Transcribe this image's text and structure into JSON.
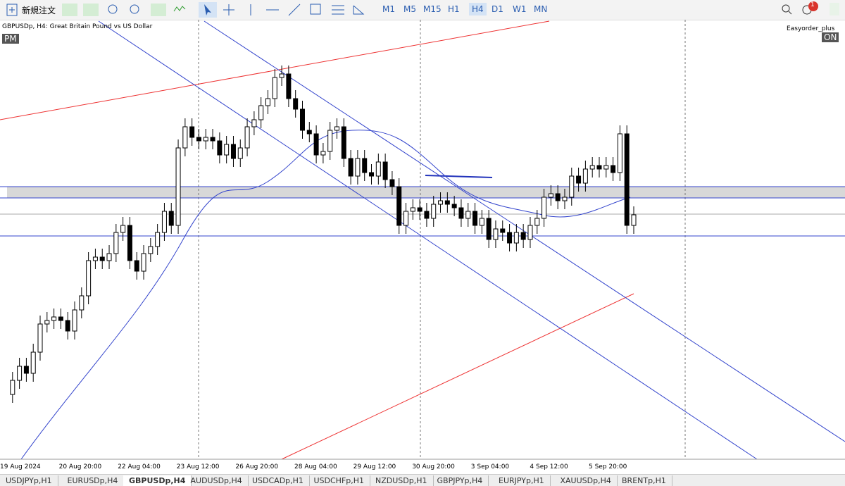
{
  "toolbar": {
    "new_order": "新規注文",
    "notifications": "1",
    "timeframes": [
      "M1",
      "M5",
      "M15",
      "H1",
      "H4",
      "D1",
      "W1",
      "MN"
    ],
    "active_timeframe": 4
  },
  "chart": {
    "symbol_label": "GBPUSDp, H4:  Great Britain Pound vs US Dollar",
    "pm_label": "PM",
    "expert": "Easyorder_plus",
    "expert_status": "ON",
    "time_labels": [
      "19 Aug 2024",
      "20 Aug 20:00",
      "22 Aug 04:00",
      "23 Aug 12:00",
      "26 Aug 20:00",
      "28 Aug 04:00",
      "29 Aug 12:00",
      "30 Aug 20:00",
      "3 Sep 04:00",
      "4 Sep 12:00",
      "5 Sep 20:00"
    ]
  },
  "tabs": {
    "items": [
      "USDJPYp,H1",
      "EURUSDp,H4",
      "GBPUSDp,H4",
      "AUDUSDp,H4",
      "USDCADp,H1",
      "USDCHFp,H1",
      "NZDUSDp,H1",
      "GBPJPYp,H4",
      "EURJPYp,H1",
      "XAUUSDp,H4",
      "BRENTp,H1"
    ],
    "active": 2
  }
}
